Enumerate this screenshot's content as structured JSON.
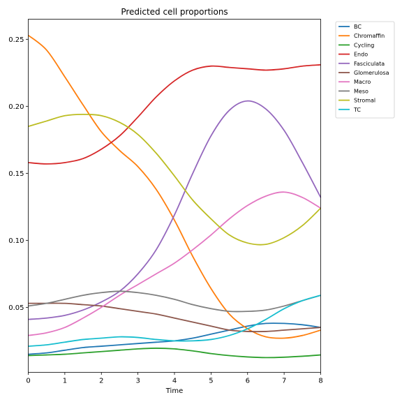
{
  "chart_data": {
    "type": "line",
    "title": "Predicted cell proportions",
    "xlabel": "Time",
    "ylabel": "",
    "xlim": [
      0,
      8
    ],
    "ylim": [
      0.0015,
      0.265
    ],
    "xticks": [
      0,
      1,
      2,
      3,
      4,
      5,
      6,
      7,
      8
    ],
    "yticks": [
      0.05,
      0.1,
      0.15,
      0.2,
      0.25
    ],
    "ytick_labels": [
      "0.05",
      "0.10",
      "0.15",
      "0.20",
      "0.25"
    ],
    "legend_position": "outside-top-right",
    "grid": false,
    "x": [
      0,
      0.5,
      1,
      1.5,
      2,
      2.5,
      3,
      3.5,
      4,
      4.5,
      5,
      5.5,
      6,
      6.5,
      7,
      7.5,
      8
    ],
    "series": [
      {
        "name": "BC",
        "color": "#1f77b4",
        "values": [
          0.015,
          0.016,
          0.018,
          0.02,
          0.021,
          0.022,
          0.023,
          0.024,
          0.025,
          0.027,
          0.03,
          0.033,
          0.036,
          0.038,
          0.038,
          0.037,
          0.035
        ]
      },
      {
        "name": "Chromaffin",
        "color": "#ff7f0e",
        "values": [
          0.253,
          0.242,
          0.222,
          0.201,
          0.181,
          0.167,
          0.155,
          0.138,
          0.115,
          0.088,
          0.064,
          0.045,
          0.034,
          0.028,
          0.027,
          0.029,
          0.033
        ]
      },
      {
        "name": "Cycling",
        "color": "#2ca02c",
        "values": [
          0.014,
          0.0145,
          0.015,
          0.016,
          0.017,
          0.018,
          0.019,
          0.0195,
          0.019,
          0.0175,
          0.0155,
          0.014,
          0.013,
          0.0125,
          0.0128,
          0.0135,
          0.0145
        ]
      },
      {
        "name": "Endo",
        "color": "#d62728",
        "values": [
          0.158,
          0.157,
          0.158,
          0.161,
          0.168,
          0.178,
          0.192,
          0.207,
          0.219,
          0.227,
          0.23,
          0.229,
          0.228,
          0.227,
          0.228,
          0.23,
          0.231
        ]
      },
      {
        "name": "Fasciculata",
        "color": "#9467bd",
        "values": [
          0.041,
          0.042,
          0.044,
          0.048,
          0.054,
          0.062,
          0.075,
          0.093,
          0.119,
          0.15,
          0.178,
          0.197,
          0.204,
          0.198,
          0.182,
          0.158,
          0.132
        ]
      },
      {
        "name": "Glomerulosa",
        "color": "#8c564b",
        "values": [
          0.053,
          0.053,
          0.053,
          0.052,
          0.051,
          0.049,
          0.047,
          0.045,
          0.042,
          0.039,
          0.036,
          0.033,
          0.032,
          0.032,
          0.033,
          0.034,
          0.035
        ]
      },
      {
        "name": "Macro",
        "color": "#e377c2",
        "values": [
          0.029,
          0.031,
          0.035,
          0.042,
          0.05,
          0.059,
          0.067,
          0.075,
          0.083,
          0.093,
          0.104,
          0.116,
          0.126,
          0.133,
          0.136,
          0.132,
          0.124
        ]
      },
      {
        "name": "Meso",
        "color": "#7f7f7f",
        "values": [
          0.051,
          0.053,
          0.056,
          0.059,
          0.061,
          0.062,
          0.061,
          0.059,
          0.056,
          0.052,
          0.049,
          0.047,
          0.047,
          0.048,
          0.051,
          0.055,
          0.059
        ]
      },
      {
        "name": "Stromal",
        "color": "#bcbd22",
        "values": [
          0.185,
          0.189,
          0.193,
          0.194,
          0.193,
          0.188,
          0.179,
          0.165,
          0.148,
          0.13,
          0.116,
          0.104,
          0.098,
          0.097,
          0.102,
          0.111,
          0.124
        ]
      },
      {
        "name": "TC",
        "color": "#17becf",
        "values": [
          0.021,
          0.022,
          0.024,
          0.026,
          0.027,
          0.028,
          0.0275,
          0.026,
          0.025,
          0.025,
          0.026,
          0.029,
          0.034,
          0.041,
          0.049,
          0.055,
          0.059
        ]
      }
    ]
  }
}
